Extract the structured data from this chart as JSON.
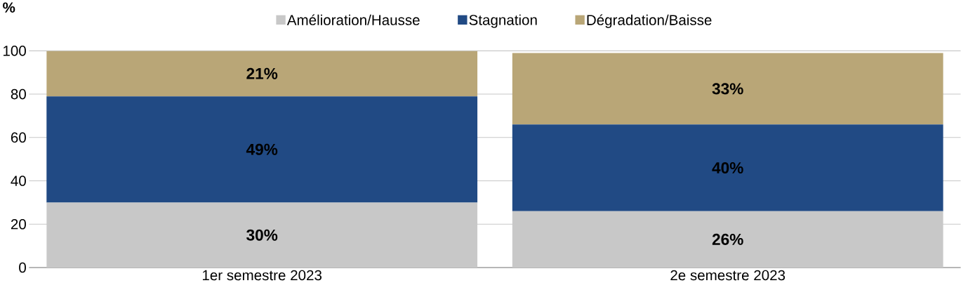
{
  "chart_data": {
    "type": "bar",
    "stacked": true,
    "ylabel": "%",
    "categories": [
      "1er semestre 2023",
      "2e semestre 2023"
    ],
    "series": [
      {
        "name": "Amélioration/Hausse",
        "color": "#c8c8c8",
        "values": [
          30,
          26
        ],
        "value_labels": [
          "30%",
          "26%"
        ]
      },
      {
        "name": "Stagnation",
        "color": "#214a84",
        "values": [
          49,
          40
        ],
        "value_labels": [
          "49%",
          "40%"
        ]
      },
      {
        "name": "Dégradation/Baisse",
        "color": "#b9a677",
        "values": [
          21,
          33
        ],
        "value_labels": [
          "21%",
          "33%"
        ]
      }
    ],
    "ylim": [
      0,
      100
    ],
    "yticks": [
      0,
      20,
      40,
      60,
      80,
      100
    ],
    "grid": "y",
    "legend": "top"
  }
}
